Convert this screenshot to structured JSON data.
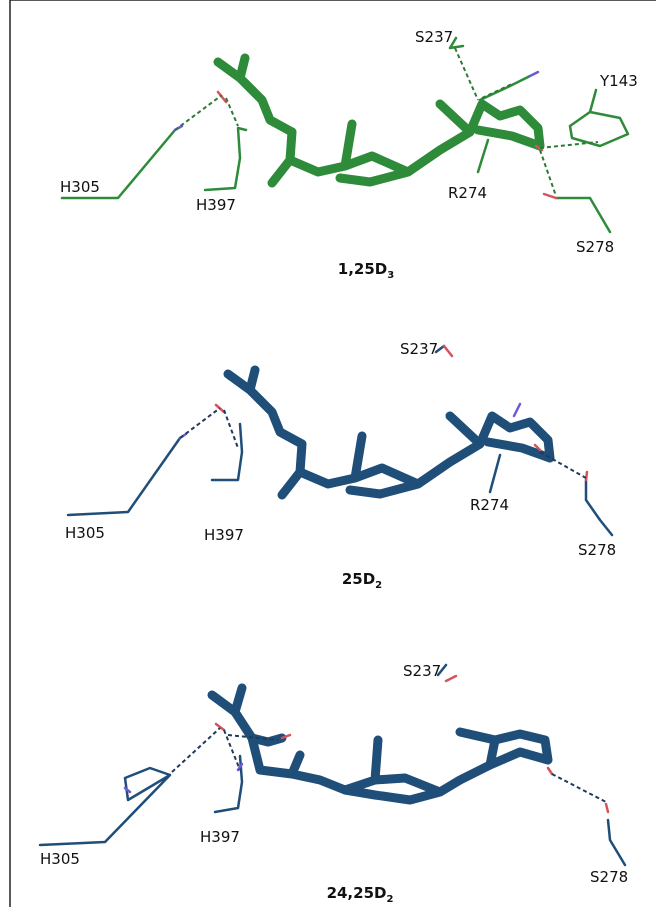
{
  "panels": [
    {
      "title": {
        "main": "1,25D",
        "sub": "3"
      },
      "labels": [
        "S237",
        "Y143",
        "H305",
        "H397",
        "R274",
        "S278"
      ]
    },
    {
      "title": {
        "main": "25D",
        "sub": "2"
      },
      "labels": [
        "S237",
        "H305",
        "H397",
        "R274",
        "S278"
      ]
    },
    {
      "title": {
        "main": "24,25D",
        "sub": "2"
      },
      "labels": [
        "S237",
        "H305",
        "H397",
        "S278"
      ]
    }
  ]
}
